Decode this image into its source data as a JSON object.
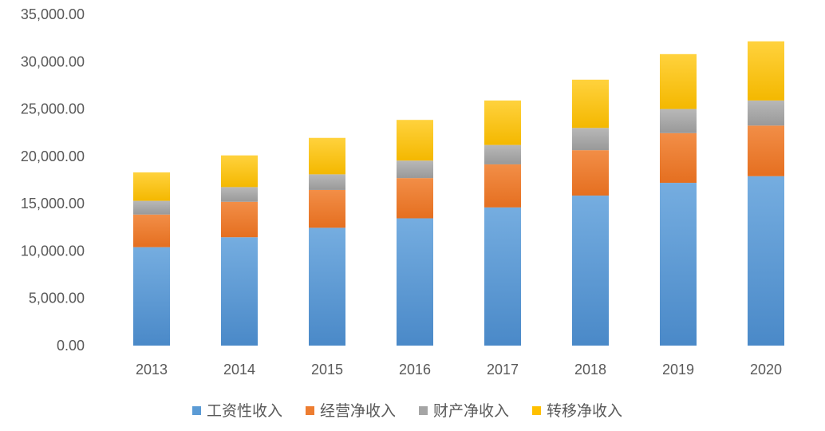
{
  "chart_data": {
    "type": "bar",
    "stacked": true,
    "title": "",
    "xlabel": "",
    "ylabel": "",
    "categories": [
      "2013",
      "2014",
      "2015",
      "2016",
      "2017",
      "2018",
      "2019",
      "2020"
    ],
    "series": [
      {
        "name": "工资性收入",
        "color": "#5b9bd5",
        "values": [
          10400,
          11450,
          12450,
          13450,
          14600,
          15850,
          17200,
          17900
        ]
      },
      {
        "name": "经营净收入",
        "color": "#ed7d31",
        "values": [
          3450,
          3750,
          4000,
          4250,
          4550,
          4800,
          5250,
          5350
        ]
      },
      {
        "name": "财产净收入",
        "color": "#a5a5a5",
        "values": [
          1450,
          1550,
          1650,
          1850,
          2050,
          2350,
          2550,
          2650
        ]
      },
      {
        "name": "转移净收入",
        "color": "#ffc000",
        "values": [
          3000,
          3350,
          3850,
          4300,
          4700,
          5100,
          5800,
          6250
        ]
      }
    ],
    "ylim": [
      0,
      35000
    ],
    "yticks": [
      "0.00",
      "5,000.00",
      "10,000.00",
      "15,000.00",
      "20,000.00",
      "25,000.00",
      "30,000.00",
      "35,000.00"
    ],
    "ytick_values": [
      0,
      5000,
      10000,
      15000,
      20000,
      25000,
      30000,
      35000
    ],
    "grid": false,
    "legend_position": "bottom"
  }
}
